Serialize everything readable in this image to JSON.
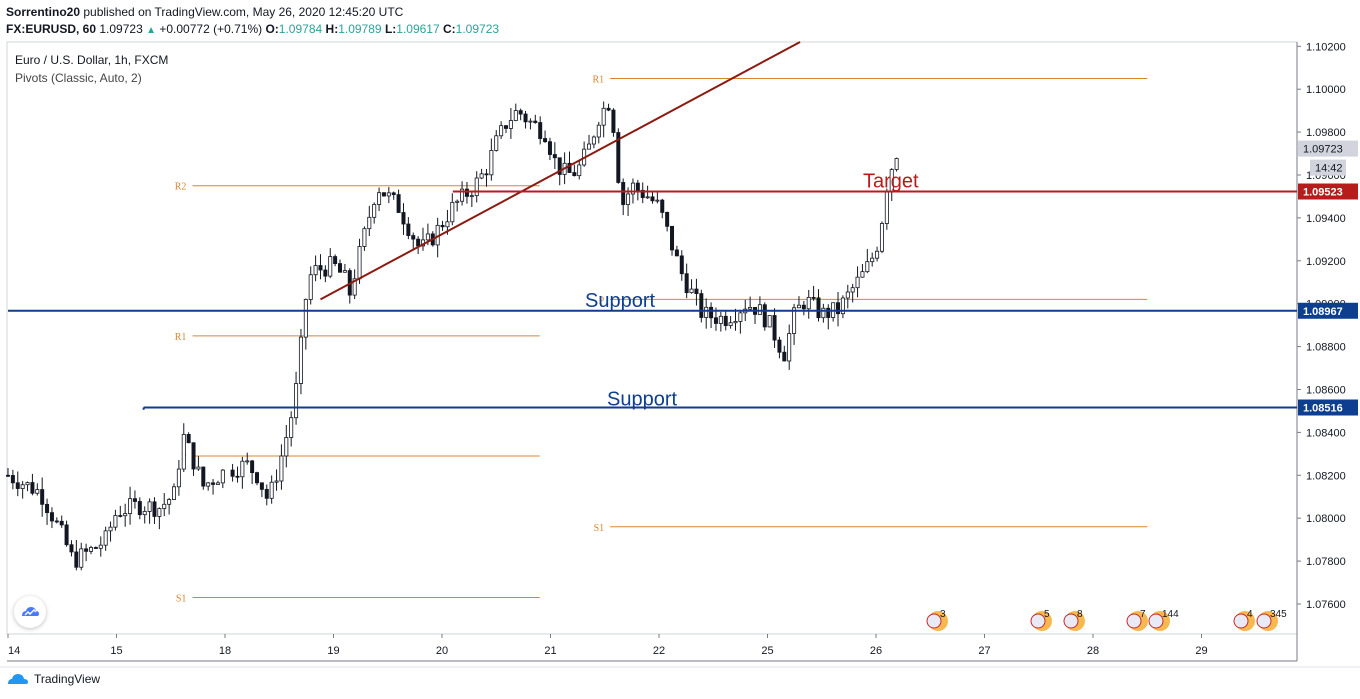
{
  "header": {
    "author": "Sorrentino20",
    "published": "published on TradingView.com, May 26, 2020 12:45:20 UTC",
    "symbol": "FX:EURUSD, 60",
    "last": "1.09723",
    "change": "+0.00772 (+0.71%)",
    "open_label": "O:",
    "open": "1.09784",
    "high_label": "H:",
    "high": "1.09789",
    "low_label": "L:",
    "low": "1.09617",
    "close_label": "C:",
    "close": "1.09723"
  },
  "legend": {
    "title": "Euro / U.S. Dollar, 1h, FXCM",
    "indicator": "Pivots (Classic, Auto, 2)"
  },
  "footer": {
    "brand": "TradingView"
  },
  "colors": {
    "pivot": "#d9852f",
    "support": "#0d3e8f",
    "target": "#b71c1c",
    "trend": "#8b1a10",
    "candle": "#131722"
  },
  "chart_data": {
    "type": "candlestick",
    "title": "Euro / U.S. Dollar, 1h, FXCM",
    "ylim": [
      1.0746,
      1.1022
    ],
    "y_ticks": [
      1.076,
      1.078,
      1.08,
      1.082,
      1.084,
      1.086,
      1.088,
      1.09,
      1.092,
      1.094,
      1.096,
      1.098,
      1.1,
      1.102
    ],
    "y_tick_labels": [
      "1.07600",
      "1.07800",
      "1.08000",
      "1.08200",
      "1.08400",
      "1.08600",
      "1.08800",
      "1.09000",
      "1.09200",
      "1.09400",
      "1.09600",
      "1.09800",
      "1.10000",
      "1.10200"
    ],
    "x_ticks": [
      {
        "label": "14",
        "day": 0
      },
      {
        "label": "15",
        "day": 1
      },
      {
        "label": "18",
        "day": 2
      },
      {
        "label": "19",
        "day": 3
      },
      {
        "label": "20",
        "day": 4
      },
      {
        "label": "21",
        "day": 5
      },
      {
        "label": "22",
        "day": 6
      },
      {
        "label": "25",
        "day": 7
      },
      {
        "label": "26",
        "day": 8
      },
      {
        "label": "27",
        "day": 9
      },
      {
        "label": "28",
        "day": 10
      },
      {
        "label": "29",
        "day": 11
      }
    ],
    "close_path": [
      [
        0.0,
        1.082
      ],
      [
        0.3,
        1.0812
      ],
      [
        0.5,
        1.0792
      ],
      [
        0.6,
        1.078
      ],
      [
        0.8,
        1.0786
      ],
      [
        0.9,
        1.079
      ],
      [
        1.0,
        1.0803
      ],
      [
        1.2,
        1.0806
      ],
      [
        1.4,
        1.0805
      ],
      [
        1.55,
        1.0812
      ],
      [
        1.6,
        1.084
      ],
      [
        1.7,
        1.0828
      ],
      [
        1.8,
        1.0815
      ],
      [
        2.0,
        1.0822
      ],
      [
        2.2,
        1.0825
      ],
      [
        2.3,
        1.082
      ],
      [
        2.4,
        1.0808
      ],
      [
        2.5,
        1.0825
      ],
      [
        2.6,
        1.0845
      ],
      [
        2.65,
        1.0858
      ],
      [
        2.7,
        1.088
      ],
      [
        2.75,
        1.0905
      ],
      [
        2.8,
        1.0915
      ],
      [
        3.0,
        1.0918
      ],
      [
        3.1,
        1.0912
      ],
      [
        3.15,
        1.0905
      ],
      [
        3.25,
        1.0925
      ],
      [
        3.4,
        1.0955
      ],
      [
        3.5,
        1.095
      ],
      [
        3.6,
        1.0945
      ],
      [
        3.7,
        1.0935
      ],
      [
        3.8,
        1.0925
      ],
      [
        3.9,
        1.093
      ],
      [
        4.1,
        1.0945
      ],
      [
        4.3,
        1.0955
      ],
      [
        4.4,
        1.0962
      ],
      [
        4.5,
        1.0975
      ],
      [
        4.6,
        1.0985
      ],
      [
        4.7,
        1.099
      ],
      [
        4.8,
        1.0985
      ],
      [
        4.95,
        1.098
      ],
      [
        5.05,
        1.0965
      ],
      [
        5.15,
        1.096
      ],
      [
        5.25,
        1.0962
      ],
      [
        5.35,
        1.0972
      ],
      [
        5.45,
        1.0988
      ],
      [
        5.55,
        1.0995
      ],
      [
        5.6,
        1.0975
      ],
      [
        5.65,
        1.0945
      ],
      [
        5.75,
        1.0955
      ],
      [
        5.9,
        1.095
      ],
      [
        6.0,
        1.0945
      ],
      [
        6.1,
        1.093
      ],
      [
        6.2,
        1.0915
      ],
      [
        6.3,
        1.0905
      ],
      [
        6.4,
        1.0895
      ],
      [
        6.6,
        1.0893
      ],
      [
        6.7,
        1.0896
      ],
      [
        6.8,
        1.09
      ],
      [
        6.9,
        1.0898
      ],
      [
        7.0,
        1.0892
      ],
      [
        7.1,
        1.0882
      ],
      [
        7.15,
        1.0876
      ],
      [
        7.25,
        1.0895
      ],
      [
        7.35,
        1.0902
      ],
      [
        7.5,
        1.0895
      ],
      [
        7.65,
        1.0897
      ],
      [
        7.8,
        1.0908
      ],
      [
        7.9,
        1.0915
      ],
      [
        8.0,
        1.0925
      ],
      [
        8.05,
        1.0938
      ],
      [
        8.1,
        1.0955
      ],
      [
        8.15,
        1.0965
      ],
      [
        8.2,
        1.0972
      ]
    ],
    "trendline": {
      "from": [
        2.88,
        1.0902
      ],
      "to": [
        7.3,
        1.1022
      ]
    },
    "pivots": [
      {
        "label": "R2",
        "price": 1.0955,
        "from": 1.7,
        "to": 4.9
      },
      {
        "label": "R1",
        "price": 1.0885,
        "from": 1.7,
        "to": 4.9
      },
      {
        "label": "P",
        "price": 1.0829,
        "from": 1.7,
        "to": 4.9
      },
      {
        "label": "S1",
        "price": 1.0763,
        "from": 1.7,
        "to": 4.9
      },
      {
        "label": "R1",
        "price": 1.1005,
        "from": 5.55,
        "to": 10.5
      },
      {
        "label": "P",
        "price": 1.0902,
        "from": 5.55,
        "to": 10.5
      },
      {
        "label": "S1",
        "price": 1.0796,
        "from": 5.55,
        "to": 10.5
      }
    ],
    "levels": [
      {
        "name": "Target",
        "price": 1.09523,
        "price_label": "1.09523",
        "from": 4.1,
        "color": "target"
      },
      {
        "name": "Support",
        "price": 1.08967,
        "price_label": "1.08967",
        "from": 0.0,
        "color": "support"
      },
      {
        "name": "Support",
        "price": 1.08516,
        "price_label": "1.08516",
        "from": 1.25,
        "color": "support"
      }
    ],
    "current": {
      "price": 1.09723,
      "price_label": "1.09723",
      "time_label": "14:42"
    },
    "events": [
      "3",
      "5",
      "5",
      "8",
      "7",
      "144",
      "3",
      "4",
      "345"
    ]
  }
}
